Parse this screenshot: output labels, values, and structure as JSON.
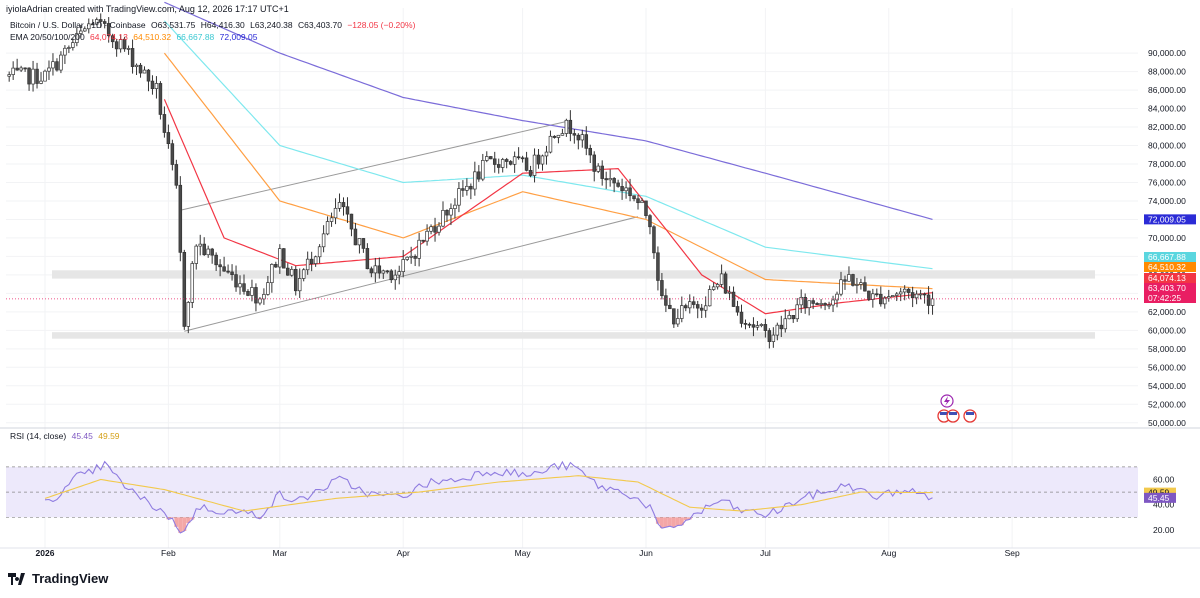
{
  "header": {
    "attribution": "iyiolaAdrian created with TradingView.com, Aug 12, 2026 17:17 UTC+1",
    "symbol": "Bitcoin / U.S. Dollar · 1D · Coinbase",
    "ohlc": {
      "open": "O63,531.75",
      "high": "H64,416.30",
      "low": "L63,240.38",
      "close": "C63,403.70",
      "change": "−128.05 (−0.20%)"
    },
    "ema_title": "EMA 20/50/100/200",
    "ema_values": [
      "64,074.13",
      "64,510.32",
      "66,667.88",
      "72,009.05"
    ]
  },
  "colors": {
    "up": "#ffffff",
    "down": "#4a4a4a",
    "wick": "#333333",
    "ema20": "#f23645",
    "ema50": "#ff9f43",
    "ema100": "#7ee8ee",
    "ema200": "#7b6cd9",
    "rsi": "#8f7ce0",
    "rsi_ma": "#f2c94c",
    "rsi_band": "#ede9fb",
    "zone": "#e6e6e6"
  },
  "chart_data": [
    {
      "type": "candlestick",
      "title": "Bitcoin / U.S. Dollar · 1D · Coinbase",
      "x_labels": [
        "2026",
        "Feb",
        "Mar",
        "Apr",
        "May",
        "Jun",
        "Jul",
        "Aug",
        "Sep"
      ],
      "y_ticks": [
        "50,000.00",
        "52,000.00",
        "54,000.00",
        "56,000.00",
        "58,000.00",
        "60,000.00",
        "62,000.00",
        "64,000.00",
        "66,000.00",
        "68,000.00",
        "70,000.00",
        "72,000.00",
        "74,000.00",
        "76,000.00",
        "78,000.00",
        "80,000.00",
        "82,000.00",
        "84,000.00",
        "86,000.00",
        "88,000.00",
        "90,000.00"
      ],
      "ylim": [
        49000,
        92500
      ],
      "price_labels": [
        {
          "name": "EMA 200",
          "value": 72009.05,
          "text": "72,009.05",
          "color": "#2b2bd6"
        },
        {
          "name": "EMA 100",
          "value": 66667.88,
          "text": "66,667.88",
          "color": "#5ad6df"
        },
        {
          "name": "EMA 50",
          "value": 64510.32,
          "text": "64,510.32",
          "color": "#ff8a00"
        },
        {
          "name": "EMA 20",
          "value": 64074.13,
          "text": "64,074.13",
          "color": "#f23645"
        },
        {
          "name": "Last",
          "value": 63403.7,
          "text": "63,403.70",
          "color": "#e91e63"
        }
      ],
      "countdown": "07:42:25",
      "zones": [
        [
          65600,
          66500
        ],
        [
          59100,
          59800
        ]
      ],
      "channel": {
        "upper": [
          [
            "2026-02-04",
            73000
          ],
          [
            "2026-05-12",
            82600
          ]
        ],
        "lower": [
          [
            "2026-02-05",
            59900
          ],
          [
            "2026-05-30",
            72300
          ]
        ]
      },
      "ema200_points": [
        [
          "2026-01-31",
          95500
        ],
        [
          "2026-03-01",
          90000
        ],
        [
          "2026-04-01",
          85200
        ],
        [
          "2026-05-01",
          82700
        ],
        [
          "2026-06-01",
          80500
        ],
        [
          "2026-07-01",
          77000
        ],
        [
          "2026-08-12",
          72009
        ]
      ],
      "ema100_points": [
        [
          "2026-01-31",
          93500
        ],
        [
          "2026-03-01",
          80000
        ],
        [
          "2026-04-01",
          76000
        ],
        [
          "2026-05-01",
          76800
        ],
        [
          "2026-06-01",
          74500
        ],
        [
          "2026-07-01",
          69000
        ],
        [
          "2026-08-12",
          66668
        ]
      ],
      "ema50_points": [
        [
          "2026-01-31",
          90000
        ],
        [
          "2026-03-01",
          74000
        ],
        [
          "2026-04-01",
          70000
        ],
        [
          "2026-05-01",
          75000
        ],
        [
          "2026-06-01",
          72000
        ],
        [
          "2026-07-01",
          65500
        ],
        [
          "2026-08-12",
          64510
        ]
      ],
      "ema20_points": [
        [
          "2026-01-31",
          85000
        ],
        [
          "2026-02-15",
          70000
        ],
        [
          "2026-03-05",
          67000
        ],
        [
          "2026-04-01",
          68000
        ],
        [
          "2026-05-01",
          77000
        ],
        [
          "2026-05-25",
          77500
        ],
        [
          "2026-06-15",
          66000
        ],
        [
          "2026-07-01",
          61800
        ],
        [
          "2026-07-20",
          63000
        ],
        [
          "2026-08-12",
          64074
        ]
      ],
      "anchors": [
        [
          "2026-01-01",
          87500
        ],
        [
          "2026-01-13",
          93500
        ],
        [
          "2026-01-20",
          91000
        ],
        [
          "2026-01-29",
          86000
        ],
        [
          "2026-02-03",
          75000
        ],
        [
          "2026-02-05",
          61000
        ],
        [
          "2026-02-08",
          69500
        ],
        [
          "2026-02-15",
          66500
        ],
        [
          "2026-02-24",
          63500
        ],
        [
          "2026-03-01",
          68500
        ],
        [
          "2026-03-05",
          64800
        ],
        [
          "2026-03-16",
          73500
        ],
        [
          "2026-03-24",
          66500
        ],
        [
          "2026-03-31",
          66300
        ],
        [
          "2026-04-08",
          71000
        ],
        [
          "2026-04-15",
          74500
        ],
        [
          "2026-04-22",
          78000
        ],
        [
          "2026-04-27",
          78500
        ],
        [
          "2026-05-03",
          77500
        ],
        [
          "2026-05-10",
          82000
        ],
        [
          "2026-05-14",
          82000
        ],
        [
          "2026-05-20",
          77000
        ],
        [
          "2026-05-28",
          75000
        ],
        [
          "2026-06-02",
          72000
        ],
        [
          "2026-06-05",
          63000
        ],
        [
          "2026-06-08",
          61500
        ],
        [
          "2026-06-15",
          63000
        ],
        [
          "2026-06-20",
          65500
        ],
        [
          "2026-06-24",
          62000
        ],
        [
          "2026-07-01",
          59500
        ],
        [
          "2026-07-04",
          60000
        ],
        [
          "2026-07-10",
          62800
        ],
        [
          "2026-07-18",
          63500
        ],
        [
          "2026-07-22",
          65800
        ],
        [
          "2026-07-28",
          63500
        ],
        [
          "2026-08-05",
          64200
        ],
        [
          "2026-08-12",
          63404
        ]
      ]
    },
    {
      "type": "line",
      "title": "RSI (14, close)",
      "values_text": [
        "45.45",
        "49.59"
      ],
      "y_ticks": [
        "20.00",
        "40.00",
        "60.00"
      ],
      "ylim": [
        12,
        85
      ],
      "band": [
        30,
        70
      ],
      "last": {
        "rsi": 45.45,
        "ma": 49.59
      },
      "rsi_anchors": [
        [
          "2026-01-01",
          44
        ],
        [
          "2026-01-05",
          48
        ],
        [
          "2026-01-09",
          62
        ],
        [
          "2026-01-12",
          65
        ],
        [
          "2026-01-16",
          72
        ],
        [
          "2026-01-20",
          58
        ],
        [
          "2026-01-25",
          45
        ],
        [
          "2026-01-31",
          34
        ],
        [
          "2026-02-05",
          17
        ],
        [
          "2026-02-08",
          38
        ],
        [
          "2026-02-15",
          35
        ],
        [
          "2026-02-24",
          32
        ],
        [
          "2026-03-01",
          48
        ],
        [
          "2026-03-05",
          42
        ],
        [
          "2026-03-16",
          60
        ],
        [
          "2026-03-24",
          48
        ],
        [
          "2026-03-31",
          46
        ],
        [
          "2026-04-08",
          58
        ],
        [
          "2026-04-15",
          60
        ],
        [
          "2026-04-22",
          67
        ],
        [
          "2026-04-27",
          66
        ],
        [
          "2026-05-03",
          63
        ],
        [
          "2026-05-10",
          71
        ],
        [
          "2026-05-14",
          70
        ],
        [
          "2026-05-20",
          55
        ],
        [
          "2026-05-28",
          48
        ],
        [
          "2026-06-02",
          38
        ],
        [
          "2026-06-05",
          18
        ],
        [
          "2026-06-08",
          22
        ],
        [
          "2026-06-15",
          35
        ],
        [
          "2026-06-20",
          44
        ],
        [
          "2026-06-24",
          36
        ],
        [
          "2026-07-01",
          32
        ],
        [
          "2026-07-04",
          35
        ],
        [
          "2026-07-10",
          45
        ],
        [
          "2026-07-18",
          52
        ],
        [
          "2026-07-22",
          56
        ],
        [
          "2026-07-28",
          46
        ],
        [
          "2026-08-05",
          52
        ],
        [
          "2026-08-12",
          45.45
        ]
      ],
      "ma_anchors": [
        [
          "2026-01-01",
          45
        ],
        [
          "2026-01-15",
          60
        ],
        [
          "2026-01-31",
          52
        ],
        [
          "2026-02-20",
          35
        ],
        [
          "2026-03-15",
          45
        ],
        [
          "2026-04-05",
          50
        ],
        [
          "2026-04-25",
          58
        ],
        [
          "2026-05-15",
          63
        ],
        [
          "2026-05-30",
          58
        ],
        [
          "2026-06-12",
          38
        ],
        [
          "2026-06-25",
          35
        ],
        [
          "2026-07-10",
          40
        ],
        [
          "2026-07-25",
          50
        ],
        [
          "2026-08-12",
          49.59
        ]
      ]
    }
  ],
  "footer": {
    "brand": "TradingView"
  }
}
